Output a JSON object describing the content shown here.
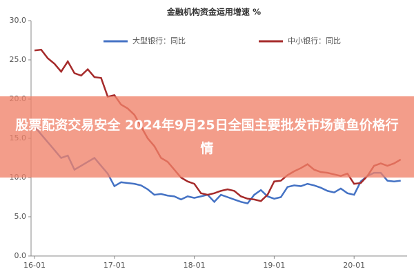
{
  "chart_data": {
    "type": "line",
    "title": "金融机构资金运用增速 %",
    "categories": [
      "16-01",
      null,
      null,
      null,
      null,
      null,
      null,
      null,
      null,
      null,
      null,
      null,
      "17-01",
      null,
      null,
      null,
      null,
      null,
      null,
      null,
      null,
      null,
      null,
      null,
      "18-01",
      null,
      null,
      null,
      null,
      null,
      null,
      null,
      null,
      null,
      null,
      null,
      "19-01",
      null,
      null,
      null,
      null,
      null,
      null,
      null,
      null,
      null,
      null,
      null,
      "20-01",
      null,
      null,
      null,
      null,
      null,
      null,
      null
    ],
    "series": [
      {
        "name": "大型银行：同比",
        "color": "#4472c4",
        "values": [
          16.5,
          15.5,
          14.5,
          13.5,
          12.5,
          12.8,
          11,
          11.5,
          12,
          12.5,
          11.5,
          10.5,
          8.9,
          9.4,
          9.3,
          9.2,
          9.0,
          8.5,
          7.8,
          7.9,
          7.7,
          7.6,
          7.2,
          7.6,
          7.4,
          7.6,
          7.8,
          6.9,
          7.8,
          7.5,
          7.2,
          6.9,
          6.7,
          7.8,
          8.4,
          7.6,
          7.3,
          7.5,
          8.8,
          9.0,
          8.9,
          9.2,
          9.0,
          8.7,
          8.3,
          8.1,
          8.6,
          8.0,
          7.8,
          9.5,
          10.2,
          10.6,
          10.6,
          9.6,
          9.5,
          9.6
        ]
      },
      {
        "name": "中小银行：同比",
        "color": "#a52a2a",
        "values": [
          26.2,
          26.3,
          25.2,
          24.5,
          23.5,
          24.8,
          23.3,
          23.0,
          23.8,
          22.8,
          22.7,
          20.3,
          20.5,
          19.3,
          18.8,
          18.0,
          16.5,
          15.0,
          14.0,
          12.5,
          12.0,
          11.0,
          10.0,
          9.5,
          9.2,
          8.0,
          7.8,
          8.0,
          8.3,
          8.5,
          8.3,
          7.6,
          7.3,
          7.2,
          7.0,
          7.8,
          9.5,
          9.6,
          10.3,
          10.8,
          11.2,
          11.7,
          11.0,
          10.7,
          10.6,
          10.4,
          10.2,
          10.5,
          9.2,
          9.3,
          10.2,
          11.5,
          11.8,
          11.5,
          11.8,
          12.3
        ]
      }
    ],
    "ylim": [
      0,
      30
    ],
    "yticks": [
      {
        "value": 0,
        "label": "0.0"
      },
      {
        "value": 5,
        "label": "5.0"
      },
      {
        "value": 10,
        "label": "10.0"
      },
      {
        "value": 15,
        "label": "15.0"
      },
      {
        "value": 20,
        "label": "20.0"
      },
      {
        "value": 25,
        "label": "25.0"
      },
      {
        "value": 30,
        "label": "30.0"
      }
    ]
  },
  "banner": {
    "text": "股票配资交易安全 2024年9月25日全国主要批发市场黄鱼价格行情"
  }
}
